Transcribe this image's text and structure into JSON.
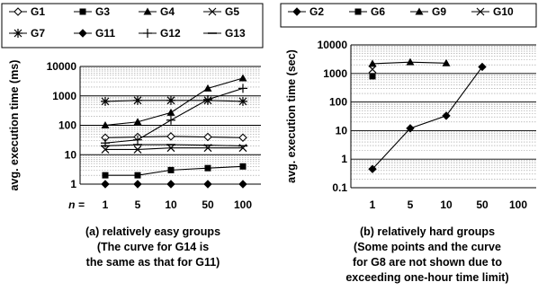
{
  "chart_data": [
    {
      "type": "line",
      "panel": "a",
      "ylabel": "avg. execution time (ms)",
      "xaxis_prefix": "n =",
      "categories": [
        "1",
        "5",
        "10",
        "50",
        "100"
      ],
      "yscale": "log",
      "ylim": [
        1,
        10000
      ],
      "yticks": [
        "1",
        "10",
        "100",
        "1000",
        "10000"
      ],
      "grid": "horizontal dotted minor lines, solid at decades",
      "legend_position": "top, boxed",
      "caption": [
        "(a) relatively easy groups",
        "(The curve for G14 is",
        "the same as that for G11)"
      ],
      "series": [
        {
          "name": "G1",
          "marker": "diamond-open",
          "values": [
            38,
            40,
            42,
            40,
            38
          ]
        },
        {
          "name": "G3",
          "marker": "square-filled",
          "values": [
            2,
            2,
            3,
            3.5,
            4
          ]
        },
        {
          "name": "G4",
          "marker": "triangle-filled",
          "values": [
            100,
            130,
            270,
            1800,
            4000
          ]
        },
        {
          "name": "G5",
          "marker": "x",
          "values": [
            15,
            15,
            17,
            17,
            17
          ]
        },
        {
          "name": "G7",
          "marker": "asterisk",
          "values": [
            650,
            700,
            700,
            700,
            650
          ]
        },
        {
          "name": "G11",
          "marker": "diamond-filled",
          "values": [
            1,
            1,
            1,
            1,
            1
          ]
        },
        {
          "name": "G12",
          "marker": "plus",
          "values": [
            25,
            32,
            150,
            750,
            1800
          ]
        },
        {
          "name": "G13",
          "marker": "dash",
          "values": [
            20,
            22,
            22,
            21,
            20
          ]
        }
      ]
    },
    {
      "type": "line",
      "panel": "b",
      "ylabel": "avg. execution time (sec)",
      "categories": [
        "1",
        "5",
        "10",
        "50",
        "100"
      ],
      "yscale": "log",
      "ylim": [
        0.1,
        10000
      ],
      "yticks": [
        "0.1",
        "1",
        "10",
        "100",
        "1000",
        "10000"
      ],
      "grid": "horizontal dotted minor lines, solid at decades",
      "legend_position": "top, boxed",
      "caption": [
        "(b) relatively hard groups",
        "(Some points and the curve",
        "for G8 are not shown due to",
        "exceeding one-hour time limit)"
      ],
      "series": [
        {
          "name": "G2",
          "marker": "diamond-filled",
          "values": [
            0.45,
            12,
            33,
            1700,
            null
          ]
        },
        {
          "name": "G6",
          "marker": "square-filled",
          "values": [
            800,
            null,
            null,
            null,
            null
          ]
        },
        {
          "name": "G9",
          "marker": "triangle-filled",
          "values": [
            2200,
            2500,
            2300,
            null,
            null
          ]
        },
        {
          "name": "G10",
          "marker": "x",
          "values": [
            1400,
            null,
            null,
            null,
            null
          ]
        }
      ]
    }
  ]
}
